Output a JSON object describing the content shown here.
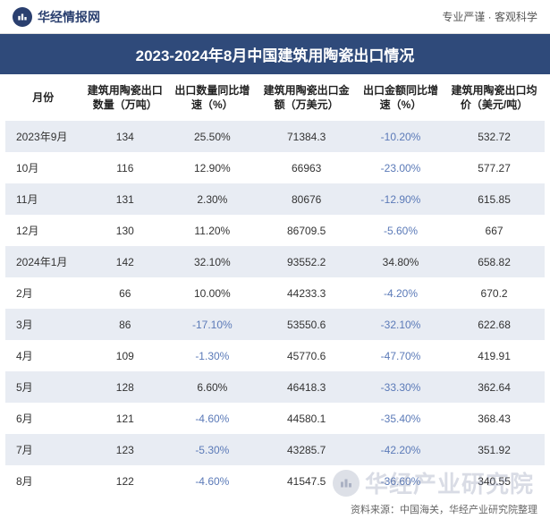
{
  "header": {
    "logo_text": "华经情报网",
    "tagline": "专业严谨 · 客观科学"
  },
  "title": "2023-2024年8月中国建筑用陶瓷出口情况",
  "colors": {
    "title_bg": "#2f4a7a",
    "title_fg": "#ffffff",
    "stripe_bg": "#e8ecf3",
    "negative_text": "#5b7ab8",
    "body_text": "#333333",
    "header_text": "#222222",
    "watermark": "rgba(120,130,160,0.28)"
  },
  "table": {
    "type": "table",
    "columns": [
      "月份",
      "建筑用陶瓷出口数量（万吨）",
      "出口数量同比增速（%）",
      "建筑用陶瓷出口金额（万美元）",
      "出口金额同比增速（%）",
      "建筑用陶瓷出口均价（美元/吨）"
    ],
    "rows": [
      {
        "month": "2023年9月",
        "qty": "134",
        "qty_yoy": "25.50%",
        "qty_yoy_neg": false,
        "amt": "71384.3",
        "amt_yoy": "-10.20%",
        "amt_yoy_neg": true,
        "price": "532.72"
      },
      {
        "month": "10月",
        "qty": "116",
        "qty_yoy": "12.90%",
        "qty_yoy_neg": false,
        "amt": "66963",
        "amt_yoy": "-23.00%",
        "amt_yoy_neg": true,
        "price": "577.27"
      },
      {
        "month": "11月",
        "qty": "131",
        "qty_yoy": "2.30%",
        "qty_yoy_neg": false,
        "amt": "80676",
        "amt_yoy": "-12.90%",
        "amt_yoy_neg": true,
        "price": "615.85"
      },
      {
        "month": "12月",
        "qty": "130",
        "qty_yoy": "11.20%",
        "qty_yoy_neg": false,
        "amt": "86709.5",
        "amt_yoy": "-5.60%",
        "amt_yoy_neg": true,
        "price": "667"
      },
      {
        "month": "2024年1月",
        "qty": "142",
        "qty_yoy": "32.10%",
        "qty_yoy_neg": false,
        "amt": "93552.2",
        "amt_yoy": "34.80%",
        "amt_yoy_neg": false,
        "price": "658.82"
      },
      {
        "month": "2月",
        "qty": "66",
        "qty_yoy": "10.00%",
        "qty_yoy_neg": false,
        "amt": "44233.3",
        "amt_yoy": "-4.20%",
        "amt_yoy_neg": true,
        "price": "670.2"
      },
      {
        "month": "3月",
        "qty": "86",
        "qty_yoy": "-17.10%",
        "qty_yoy_neg": true,
        "amt": "53550.6",
        "amt_yoy": "-32.10%",
        "amt_yoy_neg": true,
        "price": "622.68"
      },
      {
        "month": "4月",
        "qty": "109",
        "qty_yoy": "-1.30%",
        "qty_yoy_neg": true,
        "amt": "45770.6",
        "amt_yoy": "-47.70%",
        "amt_yoy_neg": true,
        "price": "419.91"
      },
      {
        "month": "5月",
        "qty": "128",
        "qty_yoy": "6.60%",
        "qty_yoy_neg": false,
        "amt": "46418.3",
        "amt_yoy": "-33.30%",
        "amt_yoy_neg": true,
        "price": "362.64"
      },
      {
        "month": "6月",
        "qty": "121",
        "qty_yoy": "-4.60%",
        "qty_yoy_neg": true,
        "amt": "44580.1",
        "amt_yoy": "-35.40%",
        "amt_yoy_neg": true,
        "price": "368.43"
      },
      {
        "month": "7月",
        "qty": "123",
        "qty_yoy": "-5.30%",
        "qty_yoy_neg": true,
        "amt": "43285.7",
        "amt_yoy": "-42.20%",
        "amt_yoy_neg": true,
        "price": "351.92"
      },
      {
        "month": "8月",
        "qty": "122",
        "qty_yoy": "-4.60%",
        "qty_yoy_neg": true,
        "amt": "41547.5",
        "amt_yoy": "-36.60%",
        "amt_yoy_neg": true,
        "price": "340.55"
      }
    ]
  },
  "footer": "资料来源：中国海关，华经产业研究院整理",
  "watermark": "华经产业研究院"
}
